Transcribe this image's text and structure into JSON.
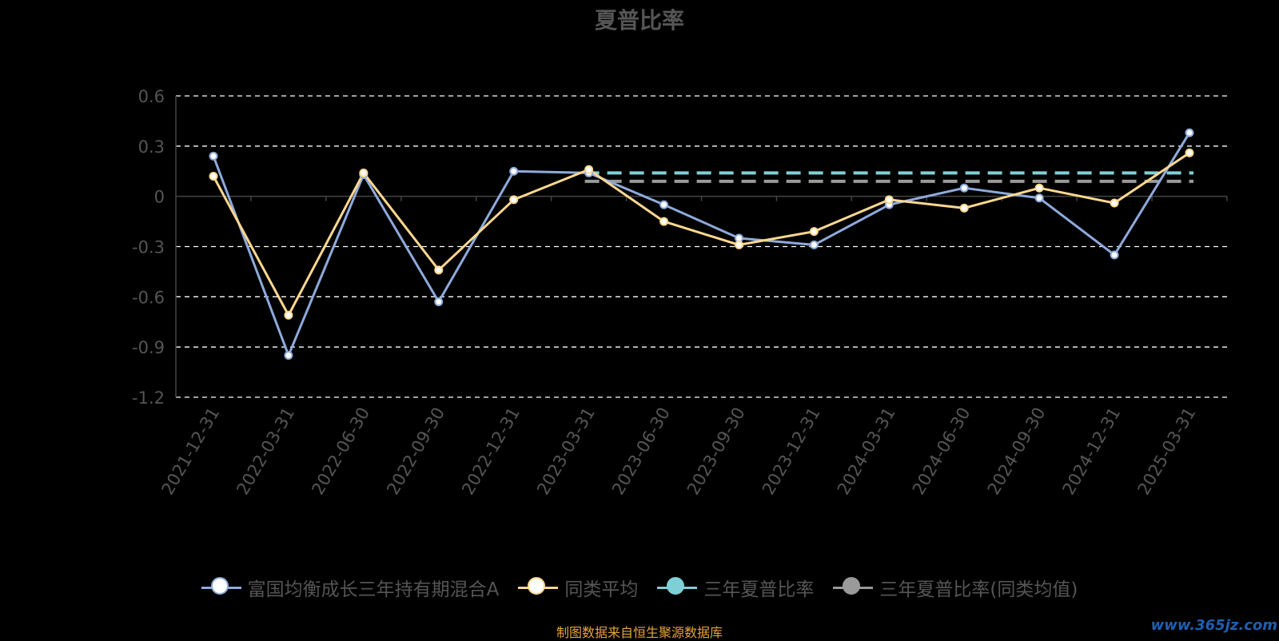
{
  "title": "夏普比率",
  "source_note": "制图数据来自恒生聚源数据库",
  "watermark": "www.365jz.com",
  "colors": {
    "fund": "#8eaadc",
    "peer_avg": "#ffd88f",
    "three_year": "#7fd0d6",
    "three_year_peer": "#9a9a9a",
    "axis_text": "#555555",
    "grid": "#ffffff"
  },
  "legend": [
    {
      "label": "富国均衡成长三年持有期混合A",
      "color": "#8eaadc",
      "dot": "#ffffff"
    },
    {
      "label": "同类平均",
      "color": "#ffd88f",
      "dot": "#ffffff"
    },
    {
      "label": "三年夏普比率",
      "color": "#7fd0d6",
      "dot": "#7fd0d6"
    },
    {
      "label": "三年夏普比率(同类均值)",
      "color": "#9a9a9a",
      "dot": "#9a9a9a"
    }
  ],
  "chart_data": {
    "type": "line",
    "title": "夏普比率",
    "categories": [
      "2021-12-31",
      "2022-03-31",
      "2022-06-30",
      "2022-09-30",
      "2022-12-31",
      "2023-03-31",
      "2023-06-30",
      "2023-09-30",
      "2023-12-31",
      "2024-03-31",
      "2024-06-30",
      "2024-09-30",
      "2024-12-31",
      "2025-03-31"
    ],
    "y_ticks": [
      "0.6",
      "0.3",
      "0",
      "-0.3",
      "-0.6",
      "-0.9",
      "-1.2"
    ],
    "ylim": [
      -1.2,
      0.6
    ],
    "grid": true,
    "legend_position": "bottom",
    "series": [
      {
        "name": "富国均衡成长三年持有期混合A",
        "values": [
          0.24,
          -0.95,
          0.13,
          -0.63,
          0.15,
          0.14,
          -0.05,
          -0.25,
          -0.29,
          -0.05,
          0.05,
          -0.01,
          -0.35,
          0.38
        ]
      },
      {
        "name": "同类平均",
        "values": [
          0.12,
          -0.71,
          0.14,
          -0.44,
          -0.02,
          0.16,
          -0.15,
          -0.29,
          -0.21,
          -0.02,
          -0.07,
          0.05,
          -0.04,
          0.26
        ]
      }
    ],
    "reference_lines": [
      {
        "name": "三年夏普比率",
        "value": 0.14,
        "from_index": 5,
        "to_index": 13
      },
      {
        "name": "三年夏普比率(同类均值)",
        "value": 0.09,
        "from_index": 5,
        "to_index": 13
      }
    ]
  }
}
